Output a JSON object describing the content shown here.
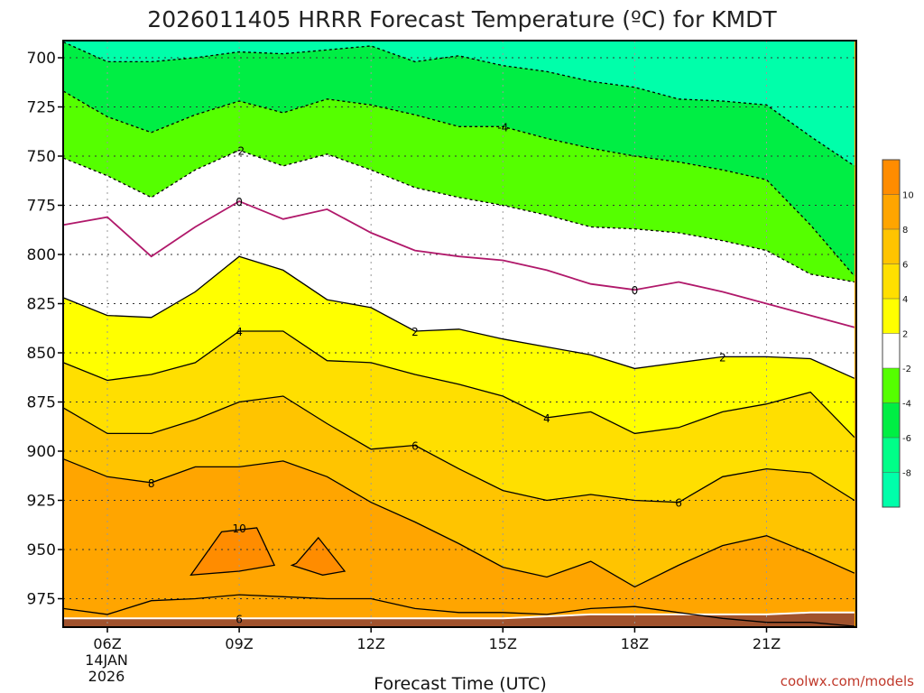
{
  "chart_data": {
    "type": "area",
    "title": "2026011405 HRRR Forecast Temperature (ºC) for KMDT",
    "xlabel": "Forecast Time (UTC)",
    "ylabel": "",
    "credit": "coolwx.com/models",
    "y_axis": {
      "ticks": [
        "700",
        "725",
        "750",
        "775",
        "800",
        "825",
        "850",
        "875",
        "900",
        "925",
        "950",
        "975"
      ],
      "range": [
        692,
        995
      ],
      "inverted": true
    },
    "x_axis": {
      "ticks": [
        "06Z",
        "09Z",
        "12Z",
        "15Z",
        "18Z",
        "21Z"
      ],
      "tick_hours": [
        6,
        9,
        12,
        15,
        18,
        21
      ],
      "range": [
        5,
        23
      ],
      "date_lines": [
        "14JAN",
        "2026"
      ]
    },
    "grid": true,
    "colorbar": {
      "ticks": [
        "10",
        "8",
        "6",
        "4",
        "2",
        "-2",
        "-4",
        "-6",
        "-8"
      ],
      "band_colors": [
        "#ff8c00",
        "#ffa500",
        "#ffc400",
        "#ffdf00",
        "#ffff00",
        "#ffffff",
        "#55ff00",
        "#00ee44",
        "#00ff88",
        "#00ffaa"
      ]
    },
    "hours": [
      5,
      6,
      7,
      8,
      9,
      10,
      11,
      12,
      13,
      14,
      15,
      16,
      17,
      18,
      19,
      20,
      21,
      22,
      23
    ],
    "isotherms": [
      {
        "value": -6,
        "levels": [
          692,
          702,
          702,
          700,
          697,
          698,
          696,
          694,
          702,
          699,
          704,
          707,
          712,
          715,
          721,
          722,
          724,
          740,
          755
        ]
      },
      {
        "value": -4,
        "levels": [
          717,
          730,
          738,
          729,
          722,
          728,
          721,
          724,
          729,
          735,
          735,
          741,
          746,
          750,
          753,
          757,
          762,
          785,
          811
        ]
      },
      {
        "value": -2,
        "levels": [
          751,
          760,
          771,
          757,
          747,
          755,
          749,
          757,
          766,
          771,
          775,
          780,
          786,
          787,
          789,
          793,
          798,
          810,
          814
        ]
      },
      {
        "value": 0,
        "levels": [
          785,
          781,
          801,
          786,
          773,
          782,
          777,
          789,
          798,
          801,
          803,
          808,
          815,
          818,
          814,
          819,
          825,
          831,
          837
        ]
      },
      {
        "value": 2,
        "levels": [
          822,
          831,
          832,
          819,
          801,
          808,
          823,
          827,
          839,
          838,
          843,
          847,
          851,
          858,
          855,
          852,
          852,
          853,
          863
        ]
      },
      {
        "value": 4,
        "levels": [
          855,
          864,
          861,
          855,
          839,
          839,
          854,
          855,
          861,
          866,
          872,
          883,
          880,
          891,
          888,
          880,
          876,
          870,
          893
        ]
      },
      {
        "value": 6,
        "levels": [
          878,
          891,
          891,
          884,
          875,
          872,
          886,
          899,
          897,
          909,
          920,
          925,
          922,
          925,
          926,
          913,
          909,
          911,
          925
        ]
      },
      {
        "value": 8,
        "levels": [
          904,
          913,
          916,
          908,
          908,
          905,
          913,
          926,
          936,
          947,
          959,
          964,
          956,
          969,
          958,
          948,
          943,
          952,
          962
        ]
      }
    ],
    "warm_cells": [
      {
        "value": 10,
        "hours": [
          8.6,
          9.4,
          9.8,
          9.0,
          7.9
        ],
        "levels": [
          941,
          939,
          958,
          961,
          963
        ]
      },
      {
        "value": 10,
        "hours": [
          10.3,
          10.8,
          11.4,
          10.9,
          10.2
        ],
        "levels": [
          957,
          944,
          961,
          963,
          958
        ]
      }
    ],
    "near_surface_isotherm": {
      "value": 6,
      "hours": [
        5,
        6,
        7,
        8,
        9,
        10,
        11,
        12,
        13,
        14,
        15,
        16,
        17,
        18,
        19,
        20,
        21,
        22,
        23
      ],
      "levels": [
        980,
        983,
        976,
        975,
        973,
        974,
        975,
        975,
        980,
        982,
        982,
        983,
        980,
        979,
        982,
        985,
        987,
        987,
        989
      ]
    },
    "surface_pressure": {
      "hours": [
        5,
        8,
        11,
        14,
        15,
        17,
        18,
        19,
        20,
        21,
        22,
        23
      ],
      "levels": [
        985,
        985,
        985,
        985,
        985,
        983,
        983,
        983,
        983,
        983,
        982,
        982
      ]
    },
    "contour_labels": [
      {
        "text": "-2",
        "hour": 9,
        "level": 747
      },
      {
        "text": "-4",
        "hour": 15,
        "level": 735
      },
      {
        "text": "0",
        "hour": 9,
        "level": 773
      },
      {
        "text": "0",
        "hour": 18,
        "level": 818
      },
      {
        "text": "2",
        "hour": 13,
        "level": 839
      },
      {
        "text": "2",
        "hour": 20,
        "level": 852
      },
      {
        "text": "4",
        "hour": 9,
        "level": 839
      },
      {
        "text": "4",
        "hour": 16,
        "level": 883
      },
      {
        "text": "6",
        "hour": 13,
        "level": 897
      },
      {
        "text": "6",
        "hour": 19,
        "level": 926
      },
      {
        "text": "6",
        "hour": 9,
        "level": 985
      },
      {
        "text": "8",
        "hour": 7,
        "level": 916
      },
      {
        "text": "10",
        "hour": 9,
        "level": 939
      }
    ]
  }
}
